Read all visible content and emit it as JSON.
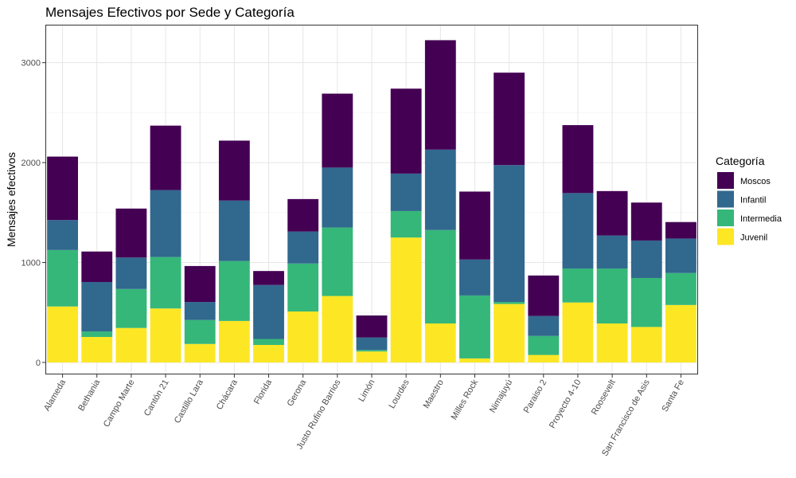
{
  "chart_data": {
    "type": "bar",
    "stacked": true,
    "title": "Mensajes Efectivos por Sede y Categoría",
    "xlabel": "",
    "ylabel": "Mensajes efectivos",
    "ylim": [
      -120,
      3380
    ],
    "yticks": [
      0,
      1000,
      2000,
      3000
    ],
    "grid": true,
    "legend_position": "right",
    "legend_title": "Categoría",
    "categories": [
      "Alameda",
      "Bethania",
      "Campo Marte",
      "Cantón 21",
      "Castillo Lara",
      "Chácara",
      "Florida",
      "Gerona",
      "Justo Rufino Barrios",
      "Limón",
      "Lourdes",
      "Maestro",
      "Milles Rock",
      "Nimajuyú",
      "Paraiso 2",
      "Proyecto 4-10",
      "Roosevelt",
      "San Francisco de Asis",
      "Santa Fe"
    ],
    "series": [
      {
        "name": "Juvenil",
        "color": "#FDE725",
        "values": [
          560,
          255,
          345,
          540,
          185,
          415,
          175,
          510,
          665,
          110,
          1250,
          390,
          40,
          585,
          75,
          600,
          390,
          355,
          575
        ]
      },
      {
        "name": "Intermedia",
        "color": "#35B779",
        "values": [
          565,
          55,
          390,
          515,
          240,
          600,
          60,
          480,
          685,
          15,
          265,
          935,
          630,
          20,
          190,
          340,
          550,
          490,
          320
        ]
      },
      {
        "name": "Infantil",
        "color": "#31688E",
        "values": [
          300,
          495,
          315,
          670,
          180,
          605,
          540,
          320,
          600,
          125,
          375,
          805,
          360,
          1370,
          200,
          755,
          330,
          375,
          345
        ]
      },
      {
        "name": "Moscos",
        "color": "#440154",
        "values": [
          635,
          305,
          490,
          645,
          360,
          600,
          140,
          325,
          740,
          220,
          850,
          1095,
          680,
          925,
          405,
          680,
          445,
          380,
          165
        ]
      }
    ],
    "legend_order": [
      "Moscos",
      "Infantil",
      "Intermedia",
      "Juvenil"
    ]
  }
}
